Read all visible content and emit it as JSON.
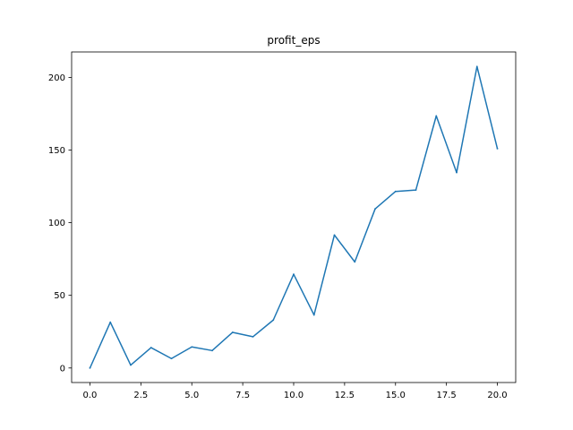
{
  "chart_data": {
    "type": "line",
    "title": "profit_eps",
    "xlabel": "",
    "ylabel": "",
    "xlim": [
      -0.9,
      20.9
    ],
    "ylim": [
      -10,
      217.5
    ],
    "xticks": [
      0.0,
      2.5,
      5.0,
      7.5,
      10.0,
      12.5,
      15.0,
      17.5,
      20.0
    ],
    "xtick_labels": [
      "0.0",
      "2.5",
      "5.0",
      "7.5",
      "10.0",
      "12.5",
      "15.0",
      "17.5",
      "20.0"
    ],
    "yticks": [
      0,
      50,
      100,
      150,
      200
    ],
    "ytick_labels": [
      "0",
      "50",
      "100",
      "150",
      "200"
    ],
    "grid": false,
    "series": [
      {
        "color": "#1f77b4",
        "x": [
          0,
          1,
          2,
          3,
          4,
          5,
          6,
          7,
          8,
          9,
          10,
          11,
          12,
          13,
          14,
          15,
          16,
          17,
          18,
          19,
          20
        ],
        "values": [
          0,
          31.5,
          2,
          14,
          6.5,
          14.5,
          12,
          24.5,
          21.5,
          33,
          64.5,
          36.5,
          91.5,
          73,
          109.5,
          121.5,
          122.5,
          173.5,
          134.5,
          207.5,
          151
        ]
      }
    ]
  }
}
